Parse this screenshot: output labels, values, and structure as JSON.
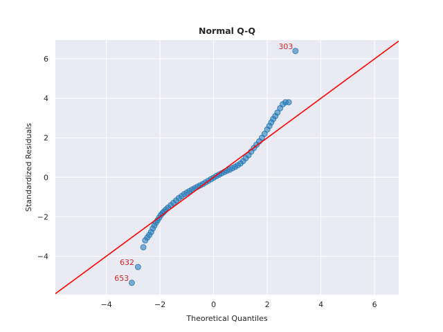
{
  "chart_data": {
    "type": "scatter",
    "title": "Normal Q-Q",
    "xlabel": "Theoretical Quantiles",
    "ylabel": "Standardized Residuals",
    "xlim": [
      -5.9,
      6.9
    ],
    "ylim": [
      -5.95,
      6.95
    ],
    "xticks": [
      -4,
      -2,
      0,
      2,
      4,
      6
    ],
    "yticks": [
      -4,
      -2,
      0,
      2,
      4,
      6
    ],
    "grid": true,
    "legend": "none",
    "colors": {
      "background": "#eaeaf2",
      "grid": "#ffffff",
      "points": "#1f77b4",
      "line": "#ff0000",
      "annotations": "#d62728"
    },
    "reference_line": {
      "slope": 1.0,
      "intercept": 0.0
    },
    "series": [
      {
        "values_xy": [
          [
            -3.05,
            -5.35
          ],
          [
            -2.82,
            -4.55
          ],
          [
            -2.62,
            -3.55
          ],
          [
            -2.55,
            -3.2
          ],
          [
            -2.47,
            -3.05
          ],
          [
            -2.4,
            -2.92
          ],
          [
            -2.33,
            -2.78
          ],
          [
            -2.27,
            -2.6
          ],
          [
            -2.21,
            -2.45
          ],
          [
            -2.15,
            -2.3
          ],
          [
            -2.09,
            -2.18
          ],
          [
            -2.03,
            -2.05
          ],
          [
            -1.97,
            -1.92
          ],
          [
            -1.91,
            -1.82
          ],
          [
            -1.85,
            -1.74
          ],
          [
            -1.78,
            -1.64
          ],
          [
            -1.7,
            -1.54
          ],
          [
            -1.6,
            -1.42
          ],
          [
            -1.5,
            -1.3
          ],
          [
            -1.4,
            -1.18
          ],
          [
            -1.3,
            -1.06
          ],
          [
            -1.2,
            -0.96
          ],
          [
            -1.1,
            -0.86
          ],
          [
            -1.0,
            -0.78
          ],
          [
            -0.9,
            -0.7
          ],
          [
            -0.8,
            -0.62
          ],
          [
            -0.7,
            -0.55
          ],
          [
            -0.6,
            -0.48
          ],
          [
            -0.5,
            -0.41
          ],
          [
            -0.4,
            -0.34
          ],
          [
            -0.3,
            -0.26
          ],
          [
            -0.2,
            -0.18
          ],
          [
            -0.1,
            -0.1
          ],
          [
            0.0,
            -0.02
          ],
          [
            0.1,
            0.06
          ],
          [
            0.2,
            0.13
          ],
          [
            0.3,
            0.2
          ],
          [
            0.4,
            0.27
          ],
          [
            0.5,
            0.33
          ],
          [
            0.6,
            0.39
          ],
          [
            0.7,
            0.46
          ],
          [
            0.8,
            0.53
          ],
          [
            0.9,
            0.61
          ],
          [
            1.0,
            0.7
          ],
          [
            1.1,
            0.82
          ],
          [
            1.2,
            0.97
          ],
          [
            1.3,
            1.12
          ],
          [
            1.4,
            1.3
          ],
          [
            1.5,
            1.48
          ],
          [
            1.6,
            1.65
          ],
          [
            1.7,
            1.82
          ],
          [
            1.8,
            2.0
          ],
          [
            1.9,
            2.2
          ],
          [
            2.0,
            2.42
          ],
          [
            2.08,
            2.6
          ],
          [
            2.15,
            2.78
          ],
          [
            2.22,
            2.95
          ],
          [
            2.3,
            3.1
          ],
          [
            2.38,
            3.28
          ],
          [
            2.48,
            3.5
          ],
          [
            2.58,
            3.7
          ],
          [
            2.68,
            3.8
          ],
          [
            2.8,
            3.8
          ],
          [
            3.05,
            6.4
          ]
        ]
      }
    ],
    "annotations": [
      {
        "text": "303",
        "x": 2.42,
        "y": 6.5
      },
      {
        "text": "632",
        "x": -3.5,
        "y": -4.45
      },
      {
        "text": "653",
        "x": -3.7,
        "y": -5.25
      }
    ]
  }
}
